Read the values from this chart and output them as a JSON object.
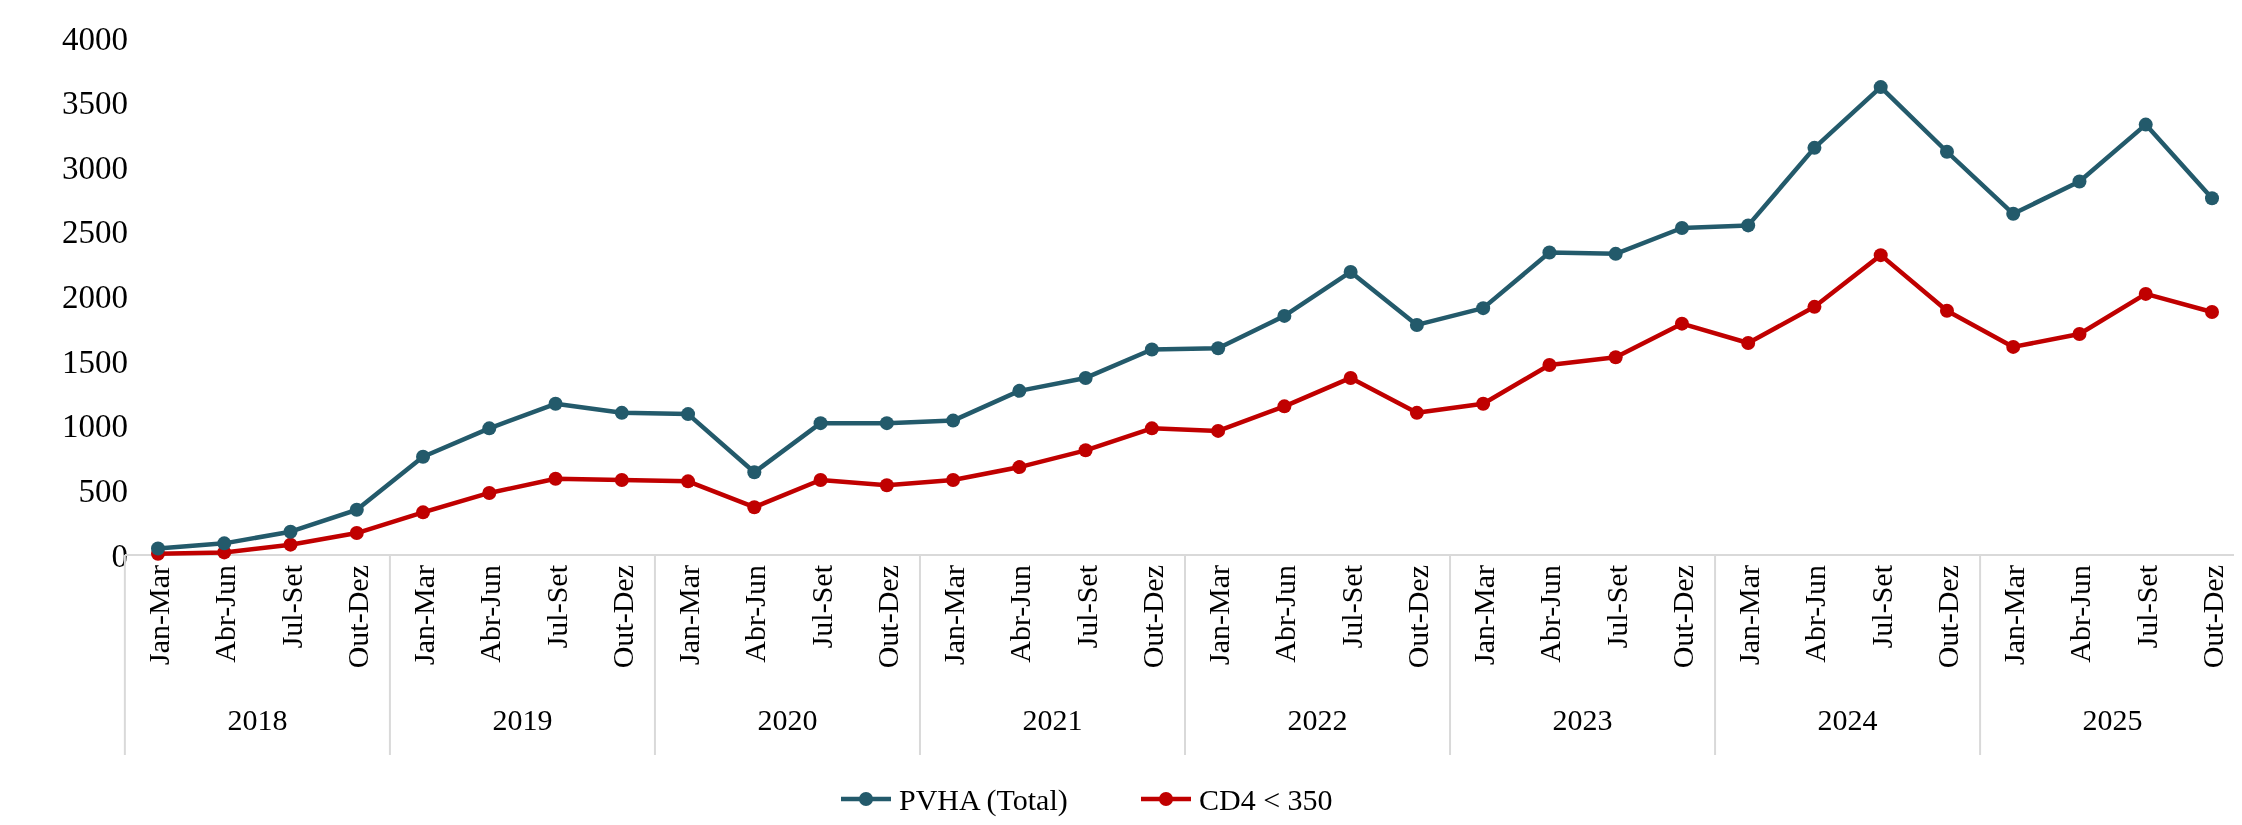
{
  "chart_data": {
    "type": "line",
    "categories": [
      "Jan-Mar",
      "Abr-Jun",
      "Jul-Set",
      "Out-Dez",
      "Jan-Mar",
      "Abr-Jun",
      "Jul-Set",
      "Out-Dez",
      "Jan-Mar",
      "Abr-Jun",
      "Jul-Set",
      "Out-Dez",
      "Jan-Mar",
      "Abr-Jun",
      "Jul-Set",
      "Out-Dez",
      "Jan-Mar",
      "Abr-Jun",
      "Jul-Set",
      "Out-Dez",
      "Jan-Mar",
      "Abr-Jun",
      "Jul-Set",
      "Out-Dez",
      "Jan-Mar",
      "Abr-Jun",
      "Jul-Set",
      "Out-Dez",
      "Jan-Mar",
      "Abr-Jun",
      "Jul-Set",
      "Out-Dez"
    ],
    "annotations": [
      "2018",
      "2019",
      "2020",
      "2021",
      "2022",
      "2023",
      "2024",
      "2025"
    ],
    "series": [
      {
        "name": "PVHA (Total)",
        "color": "#235a6b",
        "values": [
          50,
          90,
          180,
          350,
          760,
          980,
          1170,
          1100,
          1090,
          640,
          1020,
          1020,
          1040,
          1270,
          1370,
          1590,
          1600,
          1850,
          2190,
          1780,
          1910,
          2340,
          2330,
          2530,
          2550,
          3150,
          3620,
          3120,
          2640,
          2890,
          3330,
          2760
        ]
      },
      {
        "name": "CD4 < 350",
        "color": "#c00000",
        "values": [
          10,
          20,
          80,
          170,
          330,
          480,
          590,
          580,
          570,
          370,
          580,
          540,
          580,
          680,
          810,
          980,
          960,
          1150,
          1370,
          1100,
          1170,
          1470,
          1530,
          1790,
          1640,
          1920,
          2320,
          1890,
          1610,
          1710,
          2020,
          1880
        ]
      }
    ],
    "ylim": [
      0,
      4000
    ],
    "yticks": [
      0,
      500,
      1000,
      1500,
      2000,
      2500,
      3000,
      3500,
      4000
    ],
    "grid": false,
    "legend": "bottom",
    "marker": "circle",
    "line_style": "solid"
  }
}
